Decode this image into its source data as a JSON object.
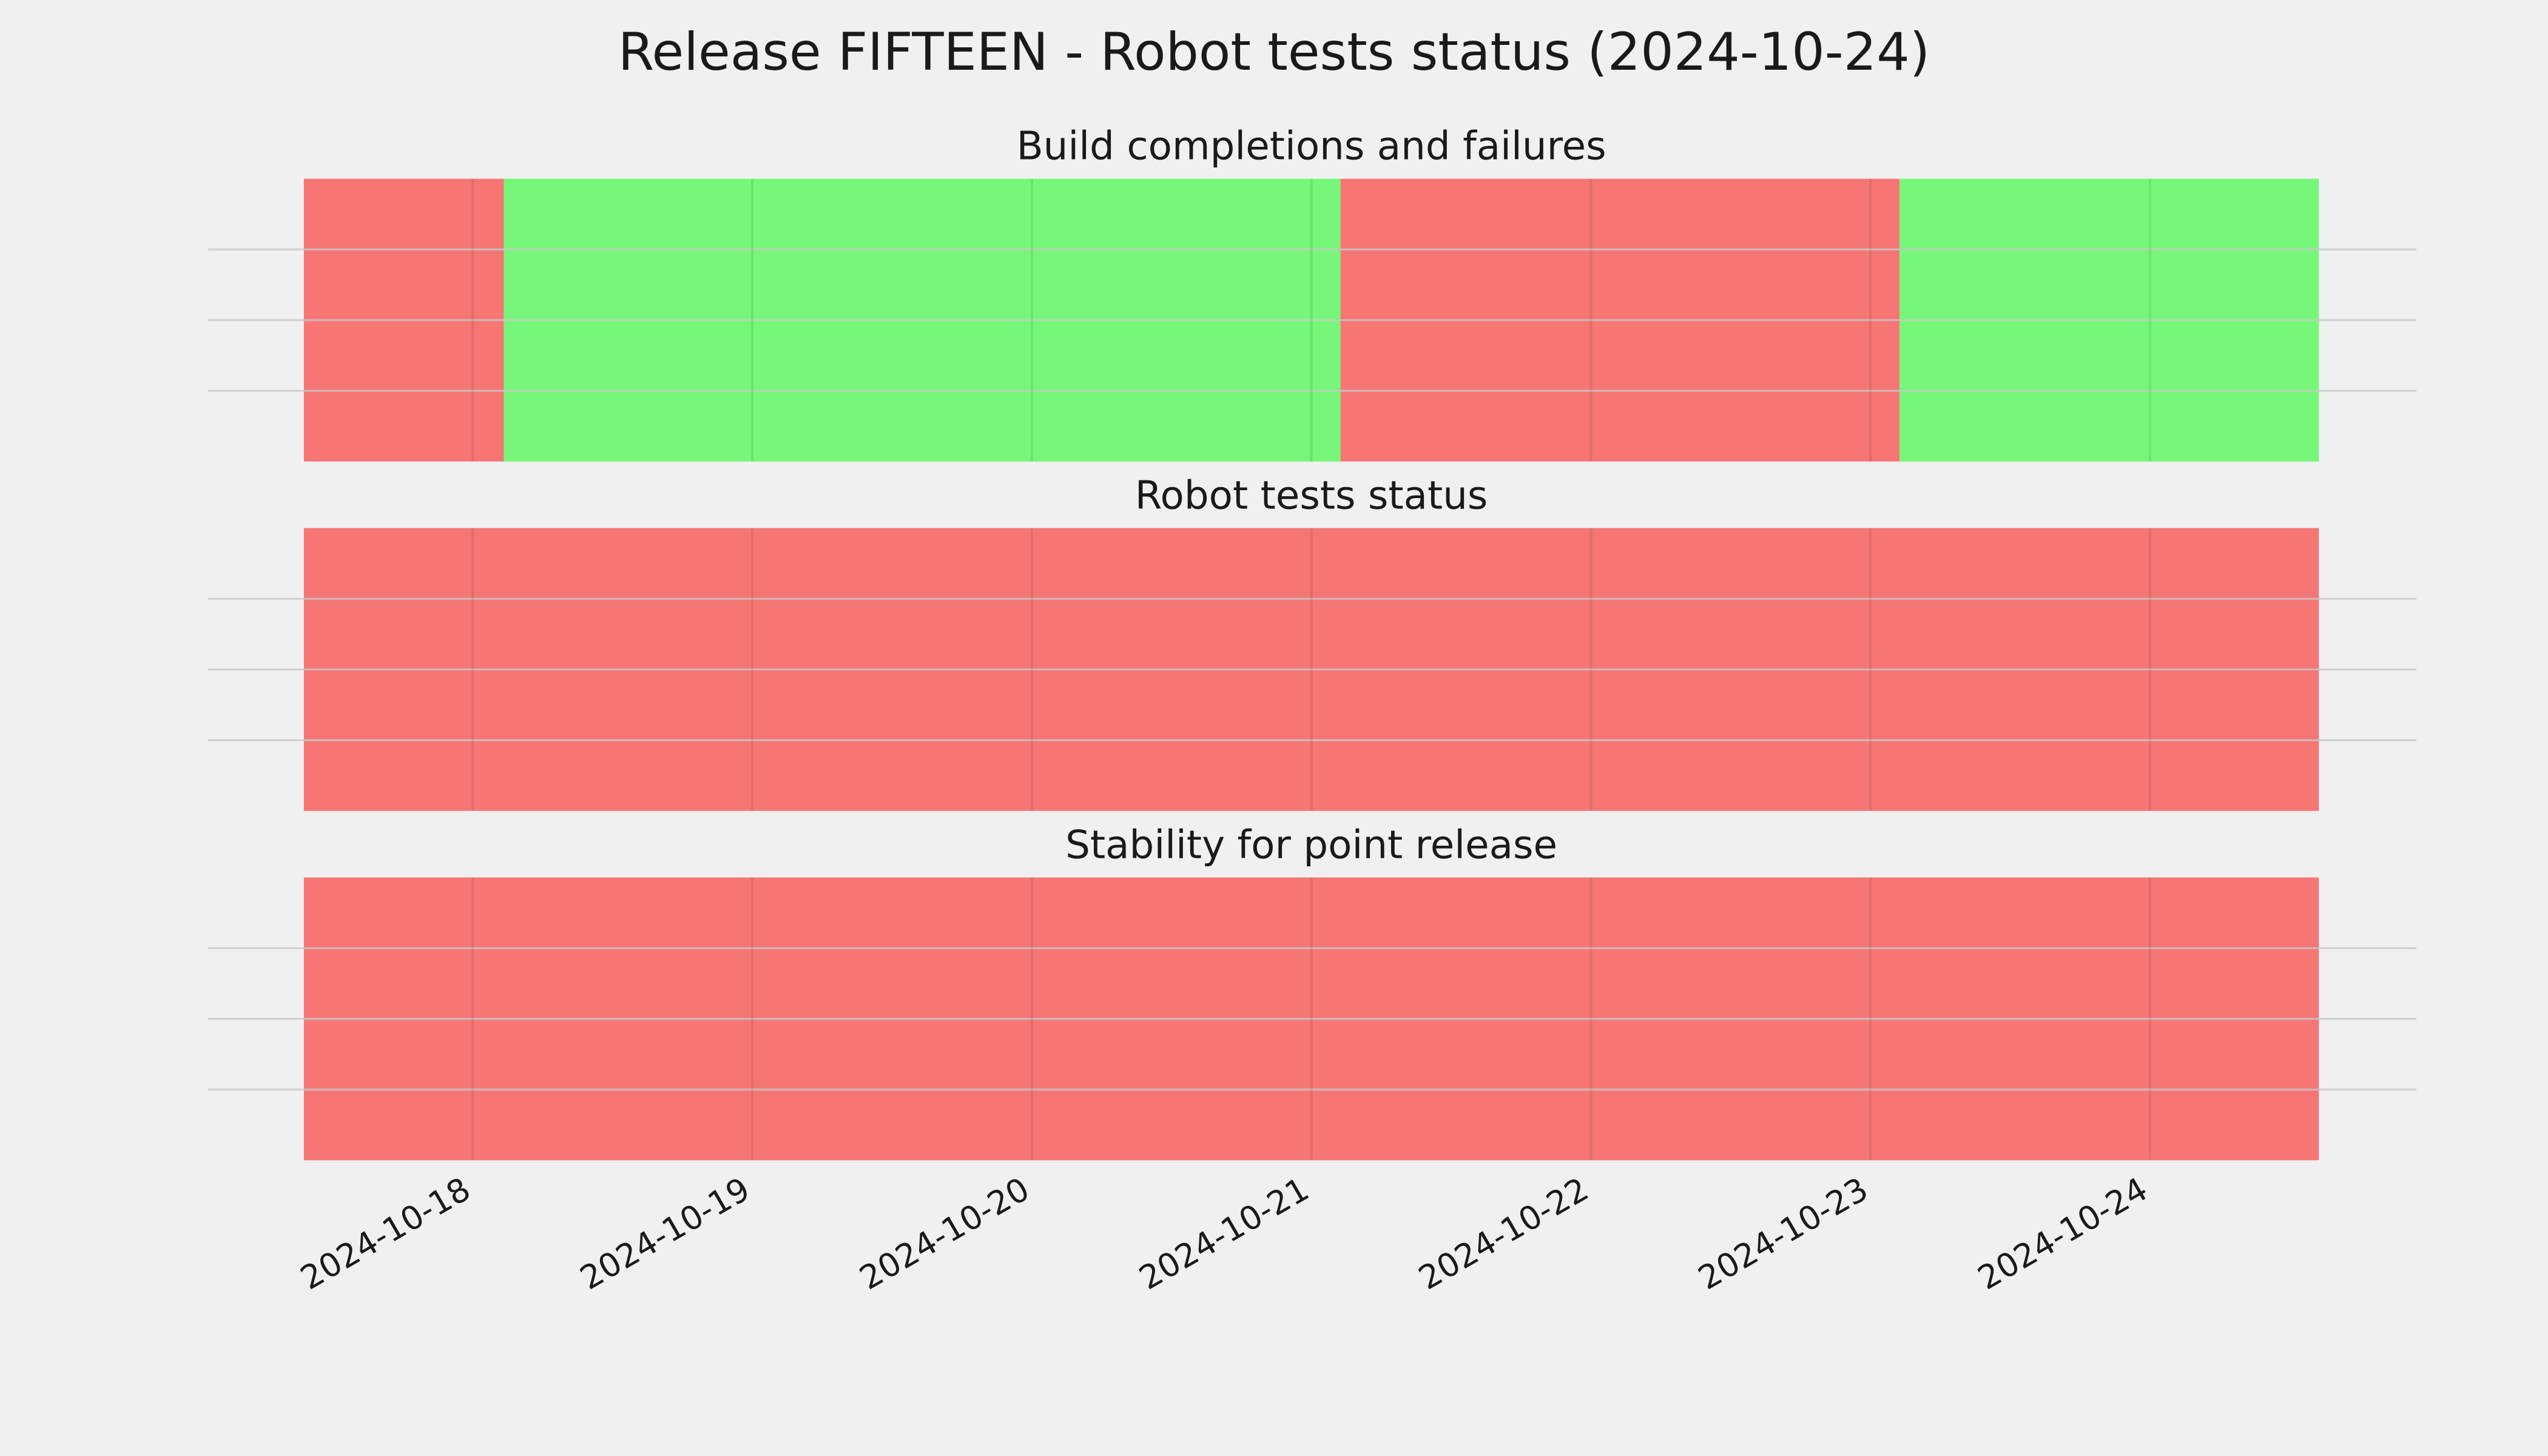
{
  "title": "Release FIFTEEN - Robot tests status (2024-10-24)",
  "chart_data": [
    {
      "type": "timeline",
      "title": "Build completions and failures",
      "xlim": [
        "2024-10-17T09:30",
        "2024-10-24T14:30"
      ],
      "xticks": [
        "2024-10-18",
        "2024-10-19",
        "2024-10-20",
        "2024-10-21",
        "2024-10-22",
        "2024-10-23",
        "2024-10-24"
      ],
      "ylim": [
        0,
        1
      ],
      "yticks": [
        0.25,
        0.5,
        0.75
      ],
      "grid": true,
      "segments": [
        {
          "start": "2024-10-17T09:30",
          "end": "2024-10-18T02:40",
          "color": "#f67674"
        },
        {
          "start": "2024-10-18T02:40",
          "end": "2024-10-21T02:30",
          "color": "#76f779"
        },
        {
          "start": "2024-10-21T02:30",
          "end": "2024-10-23T02:30",
          "color": "#f67674"
        },
        {
          "start": "2024-10-23T02:30",
          "end": "2024-10-24T14:30",
          "color": "#76f779"
        }
      ]
    },
    {
      "type": "timeline",
      "title": "Robot tests status",
      "xlim": [
        "2024-10-17T09:30",
        "2024-10-24T14:30"
      ],
      "xticks": [
        "2024-10-18",
        "2024-10-19",
        "2024-10-20",
        "2024-10-21",
        "2024-10-22",
        "2024-10-23",
        "2024-10-24"
      ],
      "ylim": [
        0,
        1
      ],
      "yticks": [
        0.25,
        0.5,
        0.75
      ],
      "grid": true,
      "segments": [
        {
          "start": "2024-10-17T09:30",
          "end": "2024-10-24T14:30",
          "color": "#f67674"
        }
      ]
    },
    {
      "type": "timeline",
      "title": "Stability for point release",
      "xlim": [
        "2024-10-17T09:30",
        "2024-10-24T14:30"
      ],
      "xticks": [
        "2024-10-18",
        "2024-10-19",
        "2024-10-20",
        "2024-10-21",
        "2024-10-22",
        "2024-10-23",
        "2024-10-24"
      ],
      "ylim": [
        0,
        1
      ],
      "yticks": [
        0.25,
        0.5,
        0.75
      ],
      "grid": true,
      "segments": [
        {
          "start": "2024-10-17T09:30",
          "end": "2024-10-24T14:30",
          "color": "#f67674"
        }
      ]
    }
  ]
}
